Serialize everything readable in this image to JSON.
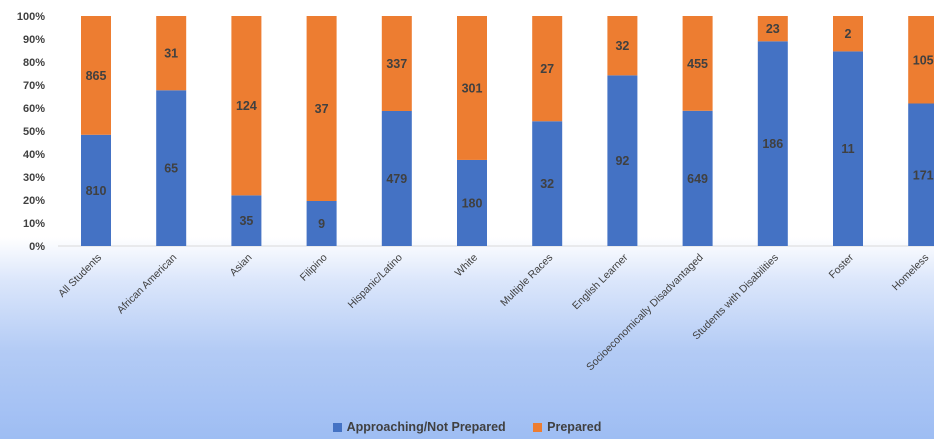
{
  "chart_data": {
    "type": "bar",
    "stacked": "percent",
    "categories": [
      "All Students",
      "African American",
      "Asian",
      "Filipino",
      "Hispanic/Latino",
      "White",
      "Multiple Races",
      "English Learner",
      "Socioeconomically Disadvantaged",
      "Students with Disabilities",
      "Foster",
      "Homeless"
    ],
    "series": [
      {
        "name": "Approaching/Not Prepared",
        "color": "#4472c4",
        "values": [
          810,
          65,
          35,
          9,
          479,
          180,
          32,
          92,
          649,
          186,
          11,
          171
        ]
      },
      {
        "name": "Prepared",
        "color": "#ed7d31",
        "values": [
          865,
          31,
          124,
          37,
          337,
          301,
          27,
          32,
          455,
          23,
          2,
          105
        ]
      }
    ],
    "ylim": [
      0,
      100
    ],
    "yticks": [
      "0%",
      "10%",
      "20%",
      "30%",
      "40%",
      "50%",
      "60%",
      "70%",
      "80%",
      "90%",
      "100%"
    ],
    "legend_position": "bottom",
    "grid": false
  }
}
